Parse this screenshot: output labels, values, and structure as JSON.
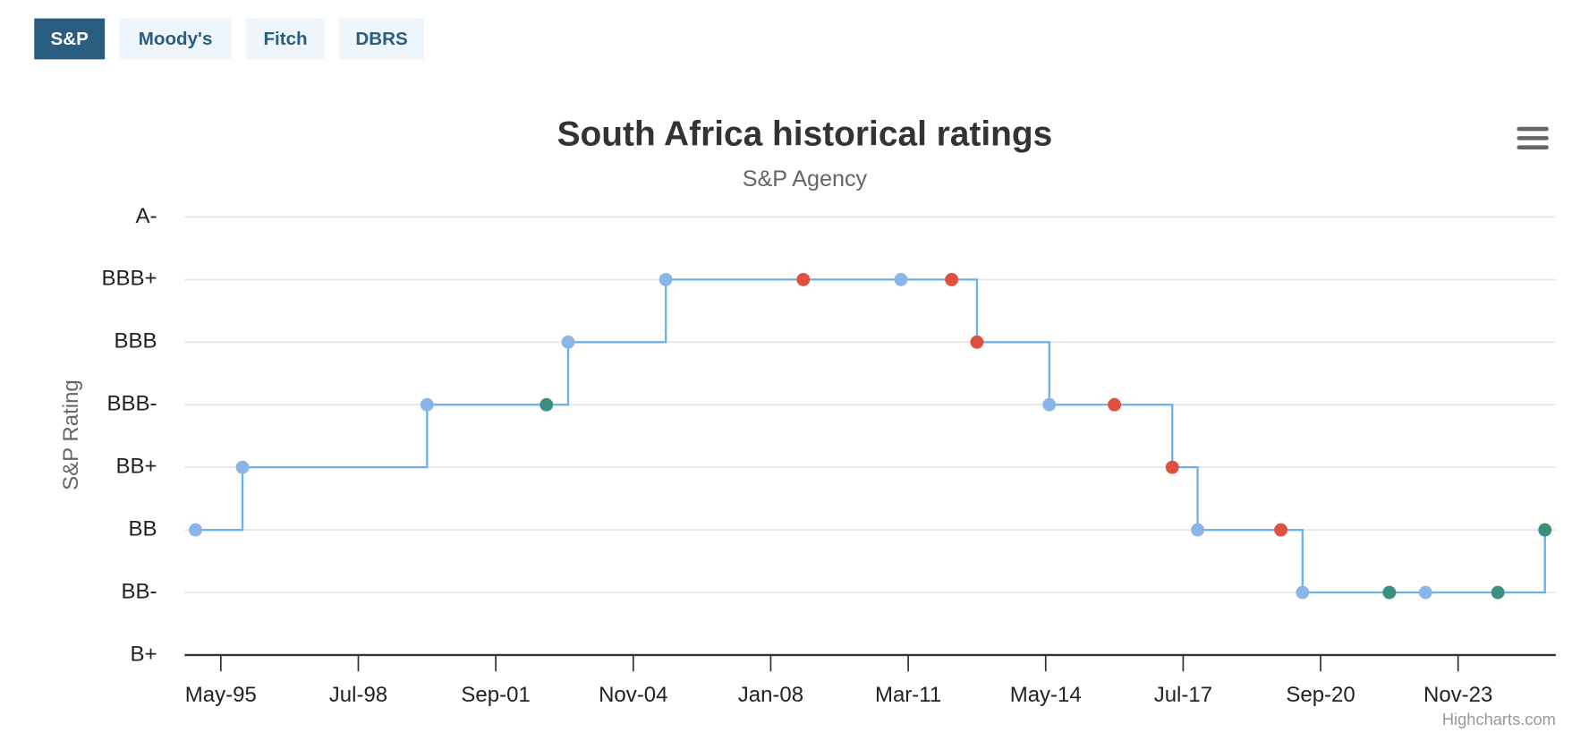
{
  "tabs": [
    "S&P",
    "Moody's",
    "Fitch",
    "DBRS"
  ],
  "active_tab": 0,
  "chart_data": {
    "type": "line",
    "step": true,
    "title": "South Africa historical ratings",
    "subtitle": "S&P Agency",
    "y_axis_label": "S&P Rating",
    "credits": "Highcharts.com",
    "color": "#6ab0ea",
    "x": [
      "1994-10",
      "1995-11",
      "2000-02",
      "2002-11",
      "2003-05",
      "2005-08",
      "2008-10",
      "2011-01",
      "2012-03",
      "2012-10",
      "2014-06",
      "2015-12",
      "2017-04",
      "2017-11",
      "2019-10",
      "2020-04",
      "2022-04",
      "2023-02",
      "2024-10",
      "2025-11"
    ],
    "values": [
      2,
      3,
      4,
      4,
      5,
      6,
      6,
      6,
      6,
      5,
      4,
      4,
      3,
      2,
      2,
      1,
      1,
      1,
      1,
      2
    ],
    "point_colors": [
      "#8bb4e7",
      "#8bb4e7",
      "#8bb4e7",
      "#3a8f80",
      "#8bb4e7",
      "#8bb4e7",
      "#e0503e",
      "#8bb4e7",
      "#e0503e",
      "#e0503e",
      "#8bb4e7",
      "#e0503e",
      "#e0503e",
      "#8bb4e7",
      "#e0503e",
      "#8bb4e7",
      "#3a8f80",
      "#8bb4e7",
      "#3a8f80",
      "#3a8f80"
    ],
    "xlim": [
      "1994-07",
      "2026-02"
    ],
    "xticks": [
      {
        "value": "1995-05",
        "label": "May-95"
      },
      {
        "value": "1998-07",
        "label": "Jul-98"
      },
      {
        "value": "2001-09",
        "label": "Sep-01"
      },
      {
        "value": "2004-11",
        "label": "Nov-04"
      },
      {
        "value": "2008-01",
        "label": "Jan-08"
      },
      {
        "value": "2011-03",
        "label": "Mar-11"
      },
      {
        "value": "2014-05",
        "label": "May-14"
      },
      {
        "value": "2017-07",
        "label": "Jul-17"
      },
      {
        "value": "2020-09",
        "label": "Sep-20"
      },
      {
        "value": "2023-11",
        "label": "Nov-23"
      }
    ],
    "ylim": [
      0,
      7
    ],
    "yticks": [
      {
        "value": 0,
        "label": "B+"
      },
      {
        "value": 1,
        "label": "BB-"
      },
      {
        "value": 2,
        "label": "BB"
      },
      {
        "value": 3,
        "label": "BB+"
      },
      {
        "value": 4,
        "label": "BBB-"
      },
      {
        "value": 5,
        "label": "BBB"
      },
      {
        "value": 6,
        "label": "BBB+"
      },
      {
        "value": 7,
        "label": "A-"
      }
    ],
    "grid": true
  }
}
